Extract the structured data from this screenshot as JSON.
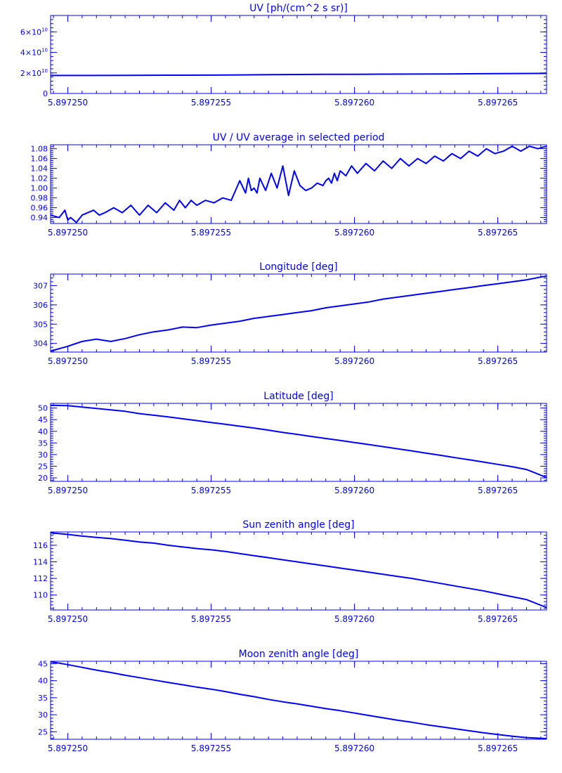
{
  "style": {
    "color": "#0000ff",
    "background": "#ffffff"
  },
  "x_axis": {
    "range": [
      5.8972494,
      5.8972667
    ],
    "ticks": [
      5.89725,
      5.897255,
      5.89726,
      5.897265
    ],
    "tick_labels": [
      "5.897250",
      "5.897255",
      "5.897260",
      "5.897265"
    ]
  },
  "chart_data": [
    {
      "type": "line",
      "title": "UV [ph/(cm^2 s sr)]",
      "ylim": [
        0,
        76000000000.0
      ],
      "yticks": [
        0,
        20000000000.0,
        40000000000.0,
        60000000000.0
      ],
      "ytick_labels": [
        {
          "mantissa": "0",
          "exp": ""
        },
        {
          "mantissa": "2×10",
          "exp": "10"
        },
        {
          "mantissa": "4×10",
          "exp": "10"
        },
        {
          "mantissa": "6×10",
          "exp": "10"
        }
      ],
      "series": [
        {
          "x": [
            5.8972494,
            5.897252,
            5.8972535,
            5.897255,
            5.897256,
            5.897257,
            5.897258,
            5.897259,
            5.89726,
            5.897261,
            5.897262,
            5.897263,
            5.897264,
            5.897265,
            5.8972667
          ],
          "y": [
            17500000000.0,
            17600000000.0,
            17800000000.0,
            17900000000.0,
            18100000000.0,
            18300000000.0,
            18500000000.0,
            18600000000.0,
            18600000000.0,
            18800000000.0,
            18900000000.0,
            19000000000.0,
            19200000000.0,
            19400000000.0,
            19600000000.0
          ]
        }
      ]
    },
    {
      "type": "line",
      "title": "UV / UV average in selected period",
      "ylim": [
        0.928,
        1.088
      ],
      "yticks": [
        0.94,
        0.96,
        0.98,
        1.0,
        1.02,
        1.04,
        1.06,
        1.08
      ],
      "ytick_labels": [
        "0.94",
        "0.96",
        "0.98",
        "1.00",
        "1.02",
        "1.04",
        "1.06",
        "1.08"
      ],
      "series": [
        {
          "x": [
            5.8972494,
            5.8972497,
            5.8972499,
            5.89725,
            5.8972501,
            5.8972503,
            5.8972505,
            5.8972507,
            5.8972509,
            5.8972511,
            5.8972513,
            5.8972516,
            5.8972519,
            5.8972522,
            5.8972525,
            5.8972528,
            5.8972531,
            5.8972534,
            5.8972537,
            5.8972539,
            5.8972541,
            5.8972543,
            5.8972545,
            5.8972548,
            5.8972551,
            5.8972554,
            5.8972557,
            5.897256,
            5.8972562,
            5.8972563,
            5.8972564,
            5.8972565,
            5.8972566,
            5.8972567,
            5.8972569,
            5.8972571,
            5.8972573,
            5.8972575,
            5.8972577,
            5.8972579,
            5.8972581,
            5.8972583,
            5.8972585,
            5.8972587,
            5.8972589,
            5.897259,
            5.8972591,
            5.8972592,
            5.8972593,
            5.8972594,
            5.8972595,
            5.8972597,
            5.8972599,
            5.8972601,
            5.8972604,
            5.8972607,
            5.897261,
            5.8972613,
            5.8972616,
            5.8972619,
            5.8972622,
            5.8972625,
            5.8972628,
            5.8972631,
            5.8972634,
            5.8972637,
            5.897264,
            5.8972643,
            5.8972646,
            5.8972649,
            5.8972652,
            5.8972655,
            5.8972658,
            5.8972661,
            5.8972664,
            5.8972667
          ],
          "y": [
            0.945,
            0.94,
            0.955,
            0.935,
            0.94,
            0.93,
            0.945,
            0.95,
            0.955,
            0.945,
            0.95,
            0.96,
            0.95,
            0.965,
            0.945,
            0.965,
            0.95,
            0.97,
            0.955,
            0.975,
            0.96,
            0.975,
            0.965,
            0.975,
            0.97,
            0.98,
            0.975,
            1.015,
            0.99,
            1.02,
            0.995,
            1.0,
            0.99,
            1.02,
            0.995,
            1.03,
            1.0,
            1.045,
            0.985,
            1.035,
            1.005,
            0.995,
            1.0,
            1.01,
            1.005,
            1.015,
            1.02,
            1.01,
            1.03,
            1.015,
            1.035,
            1.025,
            1.045,
            1.03,
            1.05,
            1.035,
            1.055,
            1.04,
            1.06,
            1.045,
            1.06,
            1.05,
            1.065,
            1.055,
            1.07,
            1.06,
            1.075,
            1.065,
            1.08,
            1.07,
            1.075,
            1.085,
            1.075,
            1.085,
            1.08,
            1.085
          ]
        }
      ]
    },
    {
      "type": "line",
      "title": "Longitude [deg]",
      "ylim": [
        303.55,
        307.6
      ],
      "yticks": [
        304,
        305,
        306,
        307
      ],
      "ytick_labels": [
        "304",
        "305",
        "306",
        "307"
      ],
      "series": [
        {
          "x": [
            5.8972494,
            5.89725,
            5.8972502,
            5.8972505,
            5.897251,
            5.8972515,
            5.897252,
            5.8972525,
            5.897253,
            5.8972535,
            5.897254,
            5.8972545,
            5.897255,
            5.8972555,
            5.897256,
            5.8972565,
            5.897257,
            5.8972575,
            5.897258,
            5.8972585,
            5.897259,
            5.8972595,
            5.89726,
            5.8972605,
            5.897261,
            5.8972615,
            5.897262,
            5.8972625,
            5.897263,
            5.8972635,
            5.897264,
            5.8972645,
            5.897265,
            5.8972655,
            5.897266,
            5.8972667
          ],
          "y": [
            303.6,
            303.85,
            303.95,
            304.1,
            304.22,
            304.1,
            304.25,
            304.45,
            304.6,
            304.7,
            304.85,
            304.82,
            304.95,
            305.05,
            305.15,
            305.3,
            305.4,
            305.5,
            305.6,
            305.7,
            305.85,
            305.95,
            306.05,
            306.15,
            306.3,
            306.4,
            306.5,
            306.6,
            306.7,
            306.8,
            306.9,
            307.0,
            307.1,
            307.2,
            307.3,
            307.5
          ]
        }
      ]
    },
    {
      "type": "line",
      "title": "Latitude [deg]",
      "ylim": [
        18.5,
        52
      ],
      "yticks": [
        20,
        25,
        30,
        35,
        40,
        45,
        50
      ],
      "ytick_labels": [
        "20",
        "25",
        "30",
        "35",
        "40",
        "45",
        "50"
      ],
      "series": [
        {
          "x": [
            5.8972494,
            5.89725,
            5.8972505,
            5.897251,
            5.8972515,
            5.897252,
            5.8972525,
            5.897253,
            5.8972535,
            5.897254,
            5.8972545,
            5.897255,
            5.8972555,
            5.897256,
            5.8972565,
            5.897257,
            5.8972575,
            5.897258,
            5.8972585,
            5.897259,
            5.8972595,
            5.89726,
            5.8972605,
            5.897261,
            5.8972615,
            5.897262,
            5.8972625,
            5.897263,
            5.8972635,
            5.897264,
            5.8972645,
            5.897265,
            5.8972655,
            5.897266,
            5.8972667
          ],
          "y": [
            51.2,
            51.0,
            50.4,
            49.8,
            49.2,
            48.6,
            47.6,
            46.9,
            46.2,
            45.4,
            44.6,
            43.8,
            43.0,
            42.2,
            41.4,
            40.5,
            39.5,
            38.7,
            37.8,
            36.9,
            36.1,
            35.2,
            34.3,
            33.4,
            32.5,
            31.6,
            30.6,
            29.7,
            28.7,
            27.8,
            26.8,
            25.8,
            24.8,
            23.6,
            20.2
          ]
        }
      ]
    },
    {
      "type": "line",
      "title": "Sun zenith angle [deg]",
      "ylim": [
        108.2,
        117.6
      ],
      "yticks": [
        110,
        112,
        114,
        116
      ],
      "ytick_labels": [
        "110",
        "112",
        "114",
        "116"
      ],
      "series": [
        {
          "x": [
            5.8972494,
            5.89725,
            5.8972505,
            5.897251,
            5.8972515,
            5.897252,
            5.8972525,
            5.897253,
            5.8972535,
            5.897254,
            5.8972545,
            5.897255,
            5.8972555,
            5.897256,
            5.8972565,
            5.897257,
            5.8972575,
            5.897258,
            5.8972585,
            5.897259,
            5.8972595,
            5.89726,
            5.8972605,
            5.897261,
            5.8972615,
            5.897262,
            5.8972625,
            5.897263,
            5.8972635,
            5.897264,
            5.8972645,
            5.897265,
            5.8972655,
            5.897266,
            5.8972667
          ],
          "y": [
            117.5,
            117.3,
            117.1,
            116.95,
            116.8,
            116.6,
            116.4,
            116.25,
            116.0,
            115.8,
            115.6,
            115.45,
            115.25,
            115.0,
            114.75,
            114.5,
            114.25,
            114.0,
            113.75,
            113.5,
            113.25,
            113.0,
            112.75,
            112.5,
            112.25,
            112.0,
            111.7,
            111.4,
            111.1,
            110.8,
            110.5,
            110.15,
            109.8,
            109.45,
            108.5
          ]
        }
      ]
    },
    {
      "type": "line",
      "title": "Moon zenith angle [deg]",
      "ylim": [
        22.8,
        45.7
      ],
      "yticks": [
        25,
        30,
        35,
        40,
        45
      ],
      "ytick_labels": [
        "25",
        "30",
        "35",
        "40",
        "45"
      ],
      "series": [
        {
          "x": [
            5.8972494,
            5.89725,
            5.8972505,
            5.897251,
            5.8972515,
            5.897252,
            5.8972525,
            5.897253,
            5.8972535,
            5.897254,
            5.8972545,
            5.897255,
            5.8972555,
            5.897256,
            5.8972565,
            5.897257,
            5.8972575,
            5.897258,
            5.8972585,
            5.897259,
            5.8972595,
            5.89726,
            5.8972605,
            5.897261,
            5.8972615,
            5.897262,
            5.8972625,
            5.897263,
            5.8972635,
            5.897264,
            5.8972645,
            5.897265,
            5.8972655,
            5.897266,
            5.8972667
          ],
          "y": [
            45.6,
            44.7,
            43.9,
            43.1,
            42.4,
            41.6,
            40.9,
            40.2,
            39.5,
            38.8,
            38.1,
            37.5,
            36.8,
            36.0,
            35.3,
            34.5,
            33.8,
            33.2,
            32.5,
            31.8,
            31.2,
            30.5,
            29.8,
            29.1,
            28.4,
            27.8,
            27.1,
            26.5,
            25.9,
            25.3,
            24.7,
            24.2,
            23.7,
            23.3,
            23.0
          ]
        }
      ]
    }
  ]
}
